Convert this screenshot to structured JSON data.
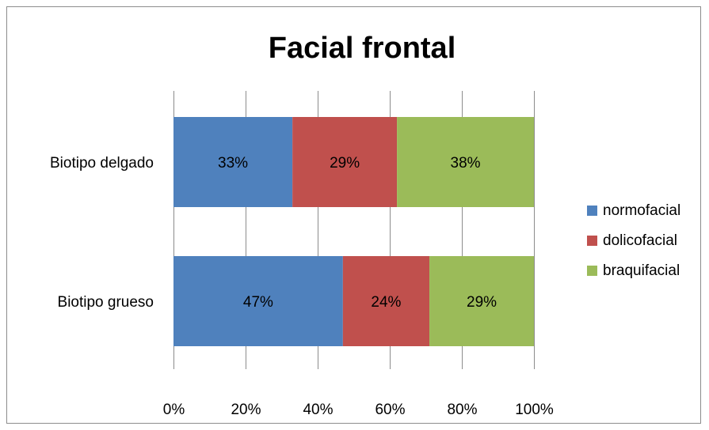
{
  "chart_data": {
    "type": "bar",
    "orientation": "horizontal",
    "stacked": "percent",
    "title": "Facial frontal",
    "xlabel": "",
    "ylabel": "",
    "xlim": [
      0,
      100
    ],
    "categories": [
      "Biotipo delgado",
      "Biotipo grueso"
    ],
    "x_ticks": [
      "0%",
      "20%",
      "40%",
      "60%",
      "80%",
      "100%"
    ],
    "series": [
      {
        "name": "normofacial",
        "color": "#4f81bd",
        "values": [
          33,
          47
        ],
        "labels": [
          "33%",
          "47%"
        ]
      },
      {
        "name": "dolicofacial",
        "color": "#c0504d",
        "values": [
          29,
          24
        ],
        "labels": [
          "29%",
          "24%"
        ]
      },
      {
        "name": "braquifacial",
        "color": "#9bbb59",
        "values": [
          38,
          29
        ],
        "labels": [
          "38%",
          "29%"
        ]
      }
    ],
    "grid": true,
    "legend_position": "right"
  }
}
